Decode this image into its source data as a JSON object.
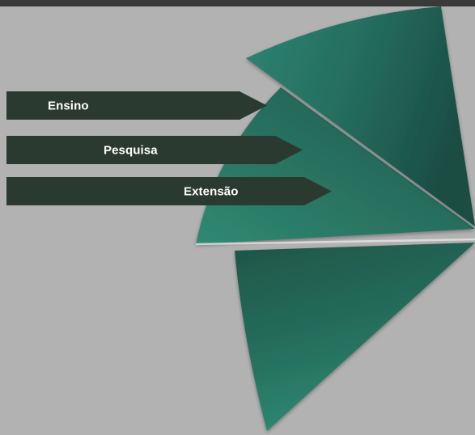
{
  "diagram": {
    "items": [
      {
        "label": "Ensino"
      },
      {
        "label": "Pesquisa"
      },
      {
        "label": "Extensão"
      }
    ]
  },
  "colors": {
    "background": "#b2b2b2",
    "top_bar": "#3a3a3a",
    "label_fill": "#2b3a30",
    "label_text": "#ffffff",
    "wedge_dark": "#1f5a4e",
    "wedge_mid": "#28725f",
    "wedge_light": "#2f8a72"
  }
}
